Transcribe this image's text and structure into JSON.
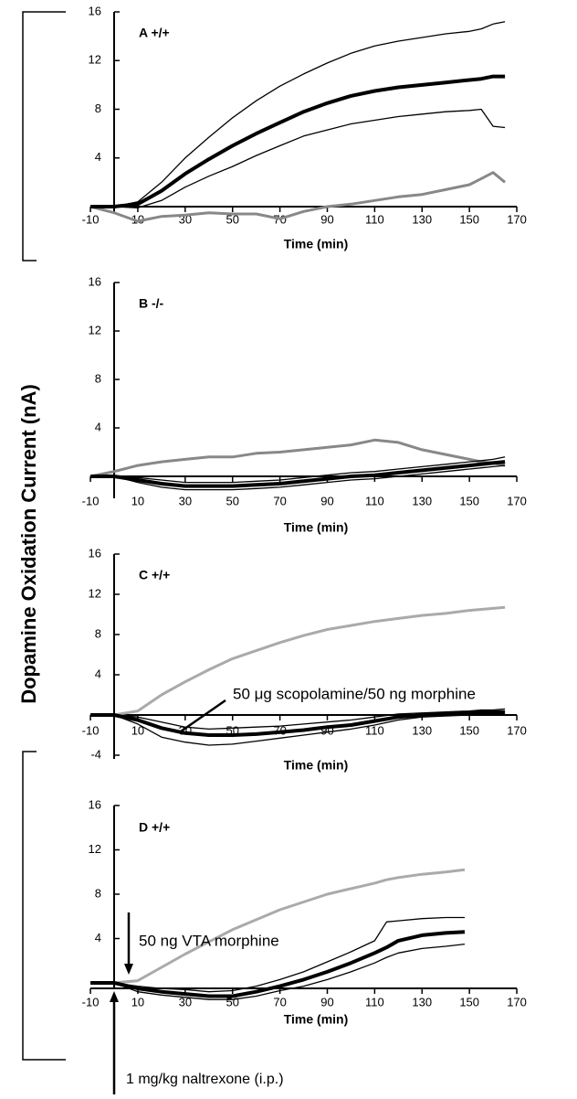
{
  "ylabel": "Dopamine Oxidation Current (nA)",
  "chart_data": [
    {
      "type": "line",
      "title": "A  +/+",
      "xlabel": "Time (min)",
      "xlim": [
        -10,
        170
      ],
      "xticks": [
        -10,
        10,
        30,
        50,
        70,
        90,
        110,
        130,
        150,
        170
      ],
      "ylim": [
        0,
        16
      ],
      "yticks": [
        4,
        8,
        12,
        16
      ],
      "x": [
        -10,
        0,
        10,
        20,
        30,
        40,
        50,
        60,
        70,
        80,
        90,
        100,
        110,
        120,
        130,
        140,
        150,
        155,
        160,
        165
      ],
      "series": [
        {
          "color": "#888888",
          "values": [
            0,
            -0.5,
            -1.2,
            -0.8,
            -0.7,
            -0.5,
            -0.6,
            -0.6,
            -1.0,
            -0.4,
            0,
            0.2,
            0.5,
            0.8,
            1.0,
            1.4,
            1.8,
            2.3,
            2.8,
            2.0
          ]
        },
        {
          "color": "#000000",
          "values": [
            0,
            0,
            0.4,
            2.0,
            4.0,
            5.7,
            7.3,
            8.7,
            9.9,
            10.9,
            11.8,
            12.6,
            13.2,
            13.6,
            13.9,
            14.2,
            14.4,
            14.6,
            15.0,
            15.2
          ]
        },
        {
          "color": "#000000",
          "values": [
            0,
            0,
            -0.1,
            0.5,
            1.6,
            2.5,
            3.3,
            4.2,
            5.0,
            5.8,
            6.3,
            6.8,
            7.1,
            7.4,
            7.6,
            7.8,
            7.9,
            8.0,
            6.6,
            6.5
          ]
        },
        {
          "color": "#000000",
          "values": [
            0,
            0,
            0.2,
            1.3,
            2.7,
            3.9,
            5.0,
            6.0,
            6.9,
            7.8,
            8.5,
            9.1,
            9.5,
            9.8,
            10.0,
            10.2,
            10.4,
            10.5,
            10.7,
            10.7
          ]
        }
      ]
    },
    {
      "type": "line",
      "title": "B  -/-",
      "xlabel": "Time (min)",
      "xlim": [
        -10,
        170
      ],
      "xticks": [
        -10,
        10,
        30,
        50,
        70,
        90,
        110,
        130,
        150,
        170
      ],
      "ylim": [
        0,
        16
      ],
      "yticks": [
        4,
        8,
        12,
        16
      ],
      "x": [
        -10,
        0,
        10,
        20,
        30,
        40,
        50,
        60,
        70,
        80,
        90,
        100,
        110,
        120,
        130,
        140,
        150,
        155,
        160,
        165
      ],
      "series": [
        {
          "color": "#888888",
          "values": [
            0,
            0.4,
            0.9,
            1.2,
            1.4,
            1.6,
            1.6,
            1.9,
            2.0,
            2.2,
            2.4,
            2.6,
            3.0,
            2.8,
            2.2,
            1.8,
            1.4,
            1.2,
            1.1,
            0.9
          ]
        },
        {
          "color": "#000000",
          "values": [
            0,
            0,
            -0.1,
            -0.3,
            -0.5,
            -0.5,
            -0.5,
            -0.4,
            -0.3,
            -0.1,
            0.1,
            0.3,
            0.4,
            0.6,
            0.8,
            1.0,
            1.2,
            1.3,
            1.4,
            1.6
          ]
        },
        {
          "color": "#000000",
          "values": [
            0,
            0,
            -0.5,
            -0.9,
            -1.1,
            -1.1,
            -1.1,
            -1.0,
            -0.9,
            -0.7,
            -0.5,
            -0.3,
            -0.2,
            0,
            0.2,
            0.4,
            0.6,
            0.7,
            0.8,
            0.9
          ]
        },
        {
          "color": "#000000",
          "values": [
            0,
            0,
            -0.3,
            -0.6,
            -0.8,
            -0.8,
            -0.8,
            -0.7,
            -0.6,
            -0.4,
            -0.2,
            0,
            0.1,
            0.3,
            0.5,
            0.7,
            0.9,
            1.0,
            1.1,
            1.2
          ]
        }
      ]
    },
    {
      "type": "line",
      "title": "C  +/+",
      "xlabel": "Time (min)",
      "xlim": [
        -10,
        170
      ],
      "xticks": [
        -10,
        10,
        30,
        50,
        70,
        90,
        110,
        130,
        150,
        170
      ],
      "ylim": [
        -4,
        16
      ],
      "yticks": [
        -4,
        4,
        8,
        12,
        16
      ],
      "x": [
        -10,
        0,
        10,
        20,
        30,
        40,
        50,
        60,
        70,
        80,
        90,
        100,
        110,
        120,
        130,
        140,
        150,
        155,
        160,
        165
      ],
      "annotations": [
        {
          "text": "50 μg scopolamine/50 ng morphine"
        }
      ],
      "series": [
        {
          "color": "#aaaaaa",
          "values": [
            0,
            0,
            0.4,
            2.0,
            3.3,
            4.5,
            5.6,
            6.4,
            7.2,
            7.9,
            8.5,
            8.9,
            9.3,
            9.6,
            9.9,
            10.1,
            10.4,
            10.5,
            10.6,
            10.7
          ]
        },
        {
          "color": "#000000",
          "values": [
            0,
            0,
            -0.2,
            -0.7,
            -1.2,
            -1.4,
            -1.3,
            -1.2,
            -1.1,
            -0.9,
            -0.7,
            -0.5,
            -0.2,
            0.1,
            0.2,
            0.3,
            0.4,
            0.5,
            0.5,
            0.6
          ]
        },
        {
          "color": "#000000",
          "values": [
            0,
            0,
            -0.9,
            -2.2,
            -2.7,
            -3.0,
            -2.9,
            -2.6,
            -2.3,
            -2.0,
            -1.7,
            -1.4,
            -1.0,
            -0.5,
            -0.2,
            -0.1,
            0,
            0.1,
            0.1,
            0.1
          ]
        },
        {
          "color": "#000000",
          "values": [
            0,
            0,
            -0.5,
            -1.3,
            -1.8,
            -2.0,
            -2.0,
            -1.9,
            -1.7,
            -1.5,
            -1.2,
            -1.0,
            -0.6,
            -0.2,
            0,
            0.1,
            0.2,
            0.3,
            0.3,
            0.3
          ]
        }
      ]
    },
    {
      "type": "line",
      "title": "D  +/+",
      "xlabel": "Time (min)",
      "xlim": [
        -10,
        170
      ],
      "xticks": [
        -10,
        10,
        30,
        50,
        70,
        90,
        110,
        130,
        150,
        170
      ],
      "ylim": [
        0,
        16
      ],
      "yticks": [
        4,
        8,
        12,
        16
      ],
      "x": [
        -10,
        0,
        10,
        20,
        30,
        40,
        50,
        60,
        70,
        80,
        90,
        100,
        110,
        115,
        120,
        130,
        140,
        148
      ],
      "annotations": [
        {
          "text": "50 ng VTA morphine"
        },
        {
          "text": "1 mg/kg naltrexone (i.p.)"
        }
      ],
      "series": [
        {
          "color": "#aaaaaa",
          "values": [
            0,
            0,
            0.2,
            1.4,
            2.6,
            3.7,
            4.8,
            5.7,
            6.6,
            7.3,
            8.0,
            8.5,
            9.0,
            9.3,
            9.5,
            9.8,
            10.0,
            10.2
          ]
        },
        {
          "color": "#000000",
          "values": [
            0,
            0,
            -0.3,
            -0.5,
            -0.6,
            -0.8,
            -0.7,
            -0.3,
            0.3,
            1.0,
            1.9,
            2.8,
            3.8,
            5.5,
            5.6,
            5.8,
            5.9,
            5.9
          ]
        },
        {
          "color": "#000000",
          "values": [
            0,
            0,
            -0.8,
            -1.1,
            -1.3,
            -1.5,
            -1.5,
            -1.2,
            -0.7,
            -0.3,
            0.3,
            1.0,
            1.8,
            2.3,
            2.7,
            3.1,
            3.3,
            3.5
          ]
        },
        {
          "color": "#000000",
          "values": [
            0,
            0,
            -0.5,
            -0.8,
            -1.0,
            -1.2,
            -1.2,
            -0.8,
            -0.3,
            0.3,
            1.0,
            1.8,
            2.7,
            3.2,
            3.8,
            4.3,
            4.5,
            4.6
          ]
        }
      ]
    }
  ]
}
